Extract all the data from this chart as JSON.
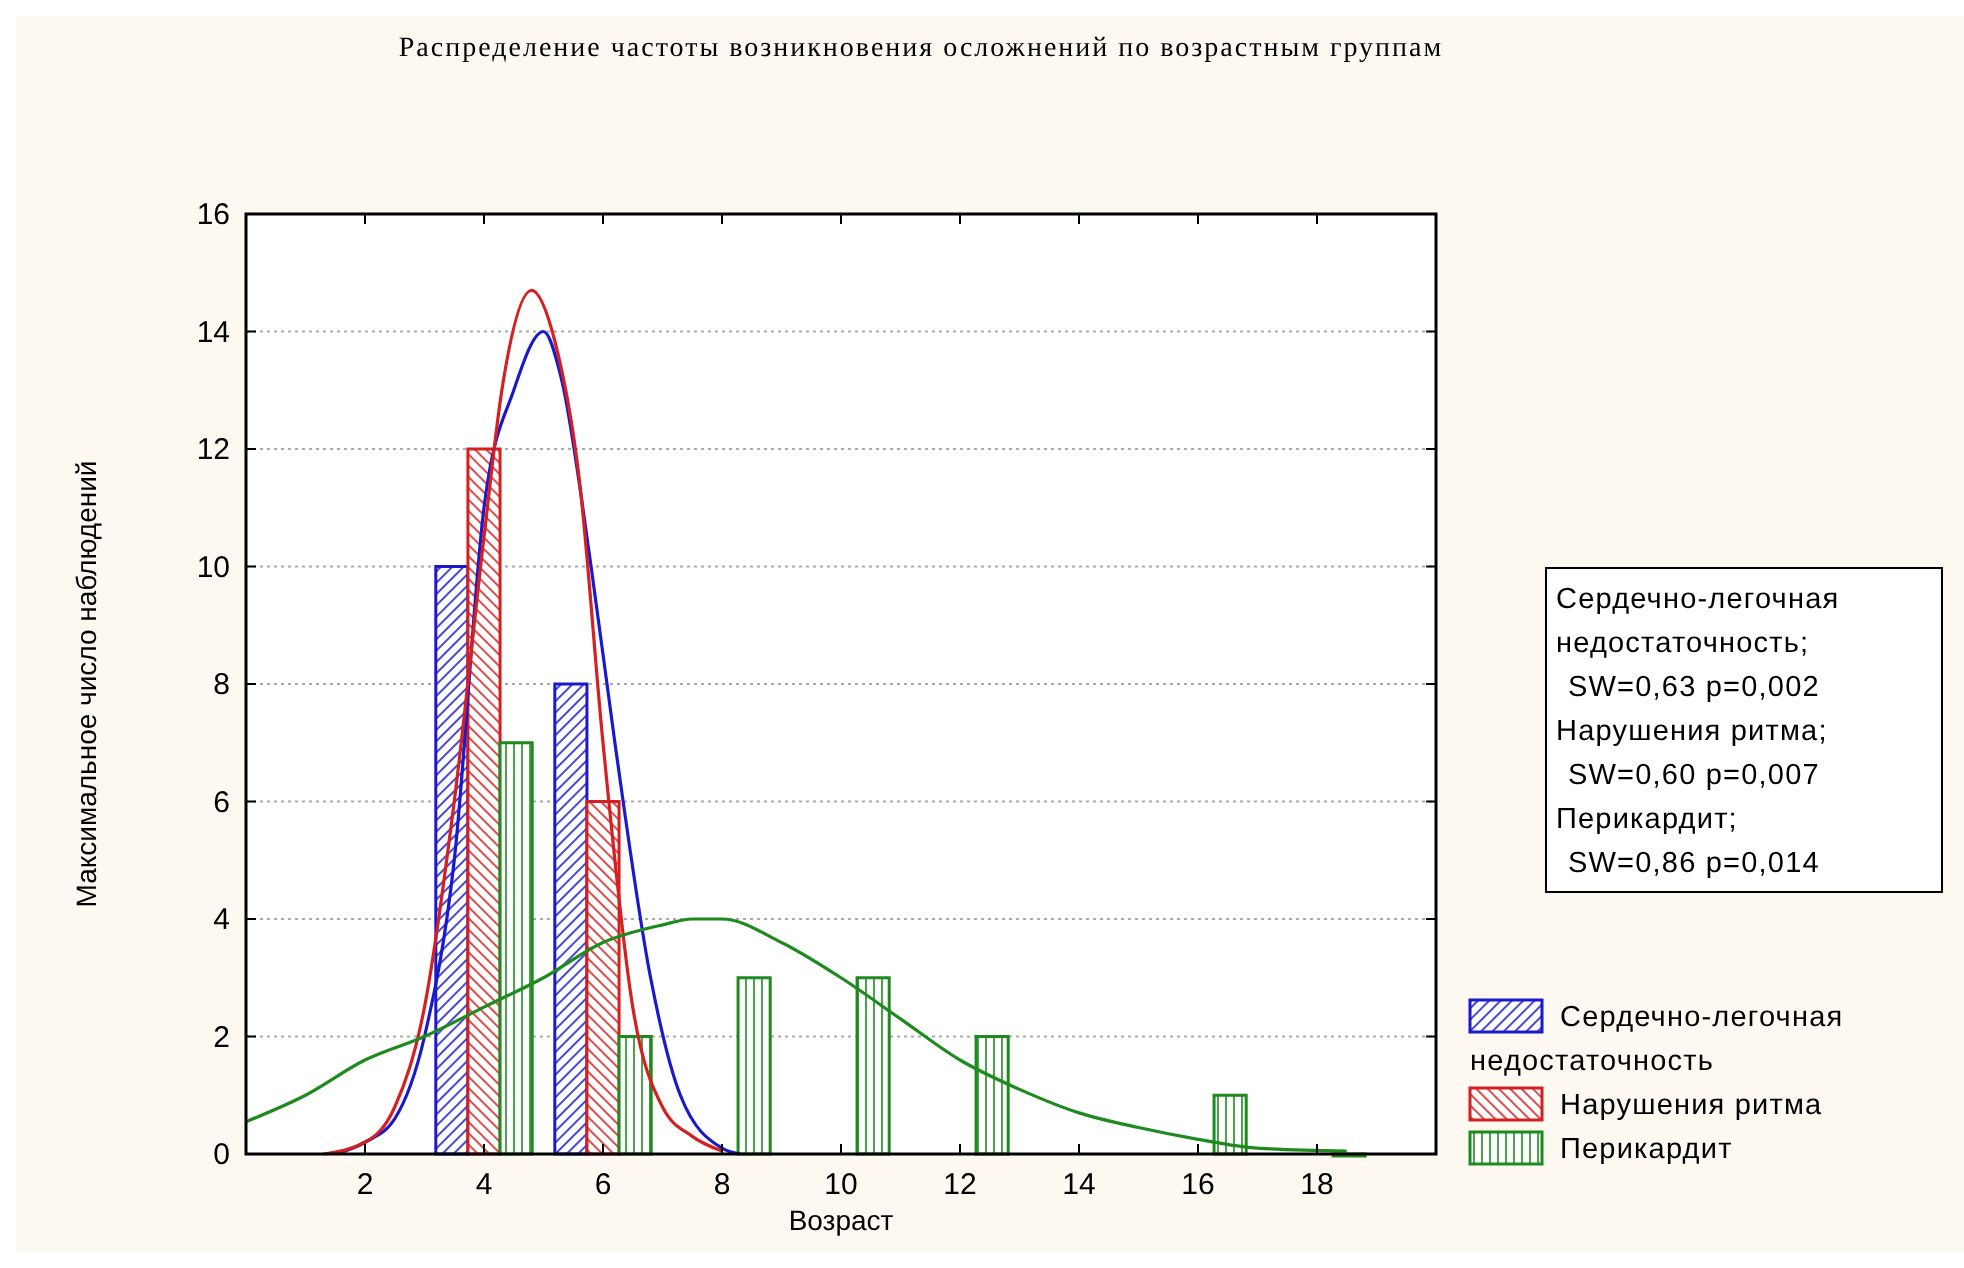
{
  "chart_data": {
    "type": "bar",
    "title": "Распределение частоты возникновения осложнений по возрастным группам",
    "xlabel": "Возраст",
    "ylabel": "Максимальное число наблюдений",
    "xlim": [
      0,
      20
    ],
    "xticks": [
      2,
      4,
      6,
      8,
      10,
      12,
      14,
      16,
      18
    ],
    "ylim": [
      0,
      16
    ],
    "yticks": [
      0,
      2,
      4,
      6,
      8,
      10,
      12,
      14,
      16
    ],
    "grid": "y",
    "legend": "bottom right",
    "annotations": [
      "Сердечно-легочная\nнедостаточность;\nSW=0,63 p=0,002",
      "Нарушения ритма;\nSW=0,60 p=0,007",
      "Перикардит;\nSW=0,86 p=0,014"
    ],
    "series": [
      {
        "name": "Сердечно-легочная недостаточность",
        "color": "#1a1acc",
        "x": [
          4,
          6
        ],
        "values": [
          10,
          8
        ]
      },
      {
        "name": "Нарушения ритма",
        "color": "#d42020",
        "x": [
          4,
          6
        ],
        "values": [
          12,
          6
        ]
      },
      {
        "name": "Перикардит",
        "color": "#1f8a1f",
        "x": [
          4,
          6,
          8,
          10,
          12,
          16,
          18
        ],
        "values": [
          7,
          2,
          3,
          3,
          2,
          1,
          0
        ]
      },
      {
        "type": "line",
        "color": "#1a1acc",
        "x": [
          1.5,
          2,
          2.5,
          3,
          3.5,
          4,
          4.5,
          5,
          5.3,
          5.8,
          6.2,
          6.8,
          7.3,
          8,
          8.3
        ],
        "values": [
          0,
          0.2,
          0.6,
          2,
          5,
          11,
          13,
          14,
          13.2,
          10,
          7,
          3,
          1,
          0.1,
          0
        ]
      },
      {
        "type": "line",
        "color": "#d42020",
        "x": [
          1.3,
          2,
          2.5,
          3,
          3.5,
          4,
          4.3,
          4.8,
          5.2,
          5.6,
          6,
          6.5,
          7,
          7.5,
          8
        ],
        "values": [
          0,
          0.2,
          0.8,
          2.5,
          6,
          10.5,
          13,
          14.7,
          13.8,
          11.5,
          7,
          2.5,
          0.8,
          0.3,
          0.05
        ]
      },
      {
        "type": "line",
        "color": "#1f8a1f",
        "x": [
          0,
          1,
          2,
          3,
          4,
          5,
          6,
          7,
          7.5,
          8,
          9,
          10,
          11,
          12,
          13,
          14,
          15,
          16,
          17,
          18.5
        ],
        "values": [
          0.55,
          1,
          1.6,
          2,
          2.5,
          3,
          3.6,
          3.9,
          4,
          4,
          3.6,
          3,
          2.3,
          1.6,
          1.1,
          0.7,
          0.45,
          0.25,
          0.1,
          0.05
        ]
      }
    ]
  }
}
